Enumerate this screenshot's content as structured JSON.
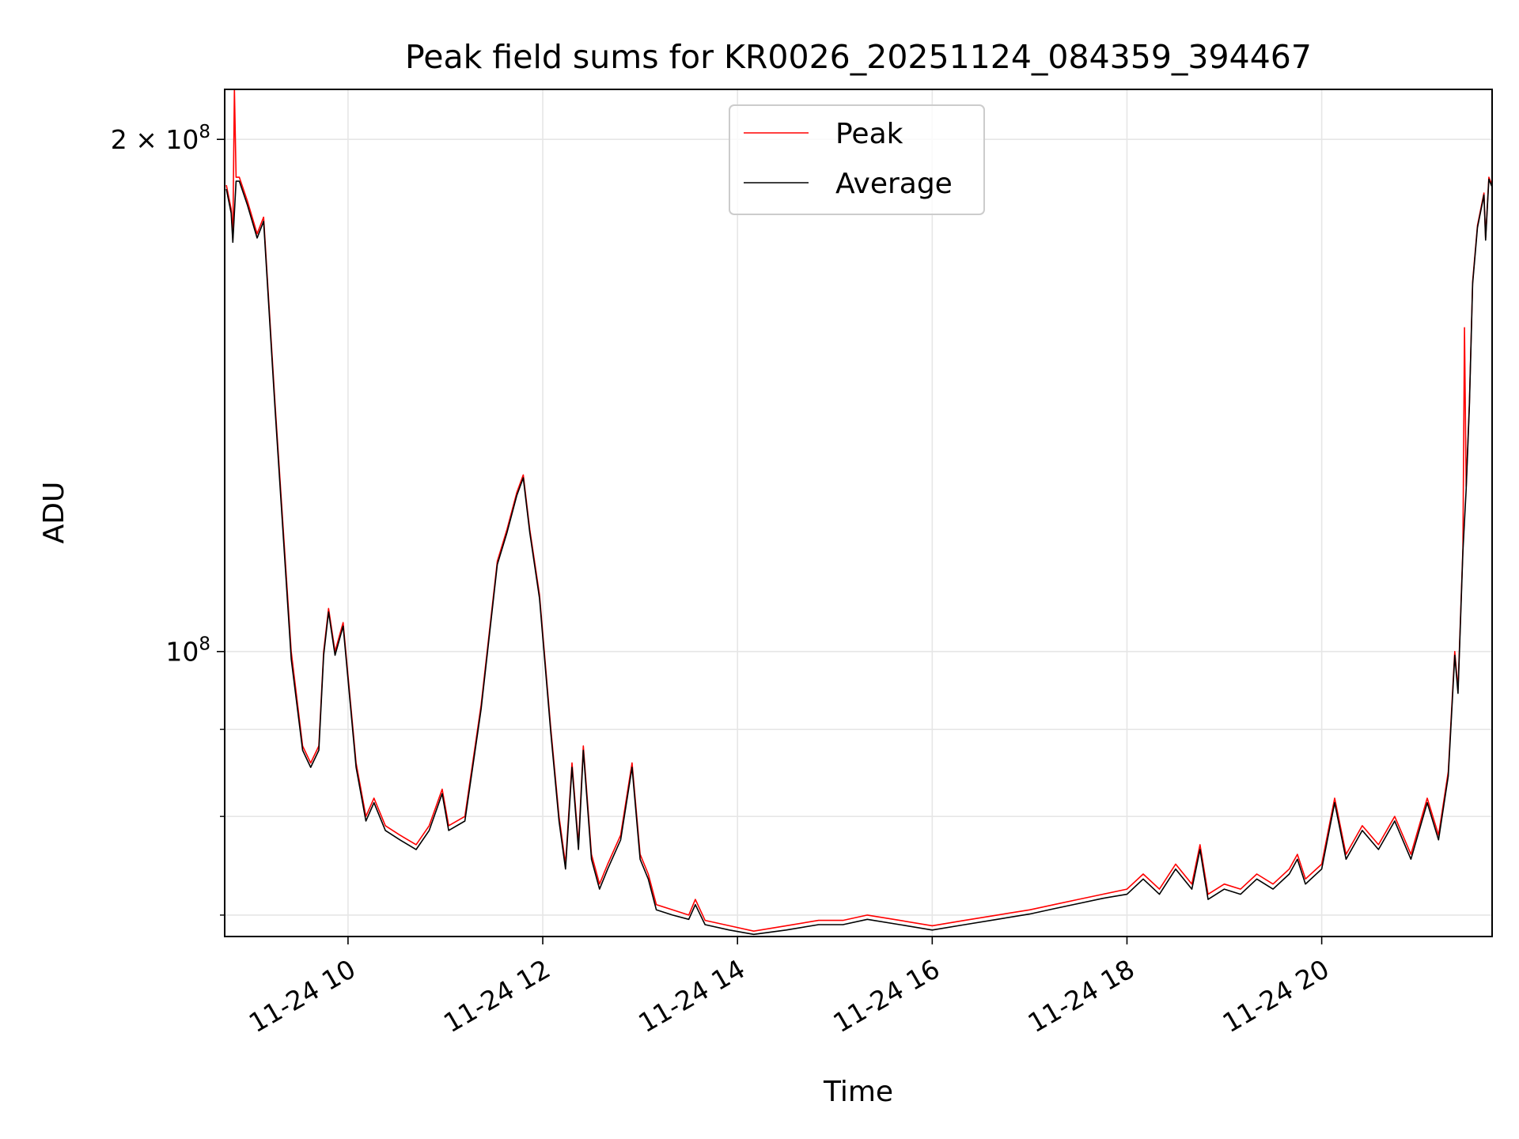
{
  "chart_data": {
    "type": "line",
    "title": "Peak field sums for KR0026_20251124_084359_394467",
    "xlabel": "Time",
    "ylabel": "ADU",
    "yscale": "log",
    "xlim": [
      "2025-11-24 08:44",
      "2025-11-24 21:45"
    ],
    "ylim": [
      68000000,
      214000000
    ],
    "x_ticks": [
      {
        "value": "2025-11-24 10:00",
        "label": "11-24 10"
      },
      {
        "value": "2025-11-24 12:00",
        "label": "11-24 12"
      },
      {
        "value": "2025-11-24 14:00",
        "label": "11-24 14"
      },
      {
        "value": "2025-11-24 16:00",
        "label": "11-24 16"
      },
      {
        "value": "2025-11-24 18:00",
        "label": "11-24 18"
      },
      {
        "value": "2025-11-24 20:00",
        "label": "11-24 20"
      }
    ],
    "y_major_ticks": [
      {
        "value": 100000000,
        "base": "10",
        "exp": "8",
        "mult": ""
      },
      {
        "value": 200000000,
        "base": "10",
        "exp": "8",
        "mult": "2 × "
      }
    ],
    "y_minor_ticks": [
      70000000,
      80000000,
      90000000
    ],
    "grid": true,
    "legend_position": "top-center",
    "series": [
      {
        "name": "Peak",
        "color": "#ff0000",
        "points": [
          [
            "2025-11-24 08:45",
            188000000
          ],
          [
            "2025-11-24 08:48",
            182000000
          ],
          [
            "2025-11-24 08:49",
            175000000
          ],
          [
            "2025-11-24 08:50",
            214000000
          ],
          [
            "2025-11-24 08:51",
            190000000
          ],
          [
            "2025-11-24 08:53",
            190000000
          ],
          [
            "2025-11-24 08:58",
            184000000
          ],
          [
            "2025-11-24 09:04",
            176000000
          ],
          [
            "2025-11-24 09:08",
            180000000
          ],
          [
            "2025-11-24 09:15",
            140000000
          ],
          [
            "2025-11-24 09:25",
            100000000
          ],
          [
            "2025-11-24 09:32",
            88000000
          ],
          [
            "2025-11-24 09:37",
            86000000
          ],
          [
            "2025-11-24 09:42",
            88000000
          ],
          [
            "2025-11-24 09:45",
            100000000
          ],
          [
            "2025-11-24 09:48",
            106000000
          ],
          [
            "2025-11-24 09:52",
            100000000
          ],
          [
            "2025-11-24 09:57",
            104000000
          ],
          [
            "2025-11-24 10:05",
            86000000
          ],
          [
            "2025-11-24 10:11",
            80000000
          ],
          [
            "2025-11-24 10:16",
            82000000
          ],
          [
            "2025-11-24 10:23",
            79000000
          ],
          [
            "2025-11-24 10:32",
            78000000
          ],
          [
            "2025-11-24 10:42",
            77000000
          ],
          [
            "2025-11-24 10:50",
            79000000
          ],
          [
            "2025-11-24 10:58",
            83000000
          ],
          [
            "2025-11-24 11:02",
            79000000
          ],
          [
            "2025-11-24 11:12",
            80000000
          ],
          [
            "2025-11-24 11:22",
            93000000
          ],
          [
            "2025-11-24 11:32",
            113000000
          ],
          [
            "2025-11-24 11:38",
            118000000
          ],
          [
            "2025-11-24 11:44",
            124000000
          ],
          [
            "2025-11-24 11:48",
            127000000
          ],
          [
            "2025-11-24 11:52",
            118000000
          ],
          [
            "2025-11-24 11:58",
            108000000
          ],
          [
            "2025-11-24 12:05",
            90000000
          ],
          [
            "2025-11-24 12:10",
            80000000
          ],
          [
            "2025-11-24 12:14",
            75000000
          ],
          [
            "2025-11-24 12:18",
            86000000
          ],
          [
            "2025-11-24 12:22",
            77000000
          ],
          [
            "2025-11-24 12:25",
            88000000
          ],
          [
            "2025-11-24 12:30",
            76000000
          ],
          [
            "2025-11-24 12:35",
            73000000
          ],
          [
            "2025-11-24 12:40",
            75000000
          ],
          [
            "2025-11-24 12:48",
            78000000
          ],
          [
            "2025-11-24 12:55",
            86000000
          ],
          [
            "2025-11-24 13:00",
            76000000
          ],
          [
            "2025-11-24 13:05",
            74000000
          ],
          [
            "2025-11-24 13:10",
            71000000
          ],
          [
            "2025-11-24 13:20",
            70500000
          ],
          [
            "2025-11-24 13:30",
            70000000
          ],
          [
            "2025-11-24 13:34",
            71500000
          ],
          [
            "2025-11-24 13:40",
            69500000
          ],
          [
            "2025-11-24 13:55",
            69000000
          ],
          [
            "2025-11-24 14:10",
            68500000
          ],
          [
            "2025-11-24 14:30",
            69000000
          ],
          [
            "2025-11-24 14:50",
            69500000
          ],
          [
            "2025-11-24 15:05",
            69500000
          ],
          [
            "2025-11-24 15:20",
            70000000
          ],
          [
            "2025-11-24 15:40",
            69500000
          ],
          [
            "2025-11-24 16:00",
            69000000
          ],
          [
            "2025-11-24 16:20",
            69500000
          ],
          [
            "2025-11-24 16:40",
            70000000
          ],
          [
            "2025-11-24 17:00",
            70500000
          ],
          [
            "2025-11-24 17:15",
            71000000
          ],
          [
            "2025-11-24 17:30",
            71500000
          ],
          [
            "2025-11-24 17:45",
            72000000
          ],
          [
            "2025-11-24 18:00",
            72500000
          ],
          [
            "2025-11-24 18:10",
            74000000
          ],
          [
            "2025-11-24 18:20",
            72500000
          ],
          [
            "2025-11-24 18:30",
            75000000
          ],
          [
            "2025-11-24 18:40",
            73000000
          ],
          [
            "2025-11-24 18:45",
            77000000
          ],
          [
            "2025-11-24 18:50",
            72000000
          ],
          [
            "2025-11-24 19:00",
            73000000
          ],
          [
            "2025-11-24 19:10",
            72500000
          ],
          [
            "2025-11-24 19:20",
            74000000
          ],
          [
            "2025-11-24 19:30",
            73000000
          ],
          [
            "2025-11-24 19:40",
            74500000
          ],
          [
            "2025-11-24 19:45",
            76000000
          ],
          [
            "2025-11-24 19:50",
            73500000
          ],
          [
            "2025-11-24 20:00",
            75000000
          ],
          [
            "2025-11-24 20:08",
            82000000
          ],
          [
            "2025-11-24 20:15",
            76000000
          ],
          [
            "2025-11-24 20:25",
            79000000
          ],
          [
            "2025-11-24 20:35",
            77000000
          ],
          [
            "2025-11-24 20:45",
            80000000
          ],
          [
            "2025-11-24 20:55",
            76000000
          ],
          [
            "2025-11-24 21:05",
            82000000
          ],
          [
            "2025-11-24 21:12",
            78000000
          ],
          [
            "2025-11-24 21:18",
            85000000
          ],
          [
            "2025-11-24 21:22",
            100000000
          ],
          [
            "2025-11-24 21:24",
            95000000
          ],
          [
            "2025-11-24 21:27",
            115000000
          ],
          [
            "2025-11-24 21:28",
            155000000
          ],
          [
            "2025-11-24 21:29",
            125000000
          ],
          [
            "2025-11-24 21:31",
            140000000
          ],
          [
            "2025-11-24 21:33",
            165000000
          ],
          [
            "2025-11-24 21:36",
            178000000
          ],
          [
            "2025-11-24 21:40",
            186000000
          ],
          [
            "2025-11-24 21:41",
            175000000
          ],
          [
            "2025-11-24 21:43",
            190000000
          ],
          [
            "2025-11-24 21:45",
            188000000
          ]
        ]
      },
      {
        "name": "Average",
        "color": "#000000",
        "points": [
          [
            "2025-11-24 08:45",
            187000000
          ],
          [
            "2025-11-24 08:48",
            181000000
          ],
          [
            "2025-11-24 08:49",
            174000000
          ],
          [
            "2025-11-24 08:51",
            189000000
          ],
          [
            "2025-11-24 08:53",
            189000000
          ],
          [
            "2025-11-24 08:58",
            183000000
          ],
          [
            "2025-11-24 09:04",
            175000000
          ],
          [
            "2025-11-24 09:08",
            179000000
          ],
          [
            "2025-11-24 09:15",
            139000000
          ],
          [
            "2025-11-24 09:25",
            99000000
          ],
          [
            "2025-11-24 09:32",
            87500000
          ],
          [
            "2025-11-24 09:37",
            85500000
          ],
          [
            "2025-11-24 09:42",
            87500000
          ],
          [
            "2025-11-24 09:45",
            99500000
          ],
          [
            "2025-11-24 09:48",
            105500000
          ],
          [
            "2025-11-24 09:52",
            99500000
          ],
          [
            "2025-11-24 09:57",
            103500000
          ],
          [
            "2025-11-24 10:05",
            85500000
          ],
          [
            "2025-11-24 10:11",
            79500000
          ],
          [
            "2025-11-24 10:16",
            81500000
          ],
          [
            "2025-11-24 10:23",
            78500000
          ],
          [
            "2025-11-24 10:32",
            77500000
          ],
          [
            "2025-11-24 10:42",
            76500000
          ],
          [
            "2025-11-24 10:50",
            78500000
          ],
          [
            "2025-11-24 10:58",
            82500000
          ],
          [
            "2025-11-24 11:02",
            78500000
          ],
          [
            "2025-11-24 11:12",
            79500000
          ],
          [
            "2025-11-24 11:22",
            92500000
          ],
          [
            "2025-11-24 11:32",
            112500000
          ],
          [
            "2025-11-24 11:38",
            117500000
          ],
          [
            "2025-11-24 11:44",
            123500000
          ],
          [
            "2025-11-24 11:48",
            126500000
          ],
          [
            "2025-11-24 11:52",
            117500000
          ],
          [
            "2025-11-24 11:58",
            107500000
          ],
          [
            "2025-11-24 12:05",
            89500000
          ],
          [
            "2025-11-24 12:10",
            79500000
          ],
          [
            "2025-11-24 12:14",
            74500000
          ],
          [
            "2025-11-24 12:18",
            85500000
          ],
          [
            "2025-11-24 12:22",
            76500000
          ],
          [
            "2025-11-24 12:25",
            87500000
          ],
          [
            "2025-11-24 12:30",
            75500000
          ],
          [
            "2025-11-24 12:35",
            72500000
          ],
          [
            "2025-11-24 12:40",
            74500000
          ],
          [
            "2025-11-24 12:48",
            77500000
          ],
          [
            "2025-11-24 12:55",
            85500000
          ],
          [
            "2025-11-24 13:00",
            75500000
          ],
          [
            "2025-11-24 13:05",
            73500000
          ],
          [
            "2025-11-24 13:10",
            70500000
          ],
          [
            "2025-11-24 13:20",
            70000000
          ],
          [
            "2025-11-24 13:30",
            69600000
          ],
          [
            "2025-11-24 13:34",
            71000000
          ],
          [
            "2025-11-24 13:40",
            69100000
          ],
          [
            "2025-11-24 13:55",
            68600000
          ],
          [
            "2025-11-24 14:10",
            68200000
          ],
          [
            "2025-11-24 14:30",
            68600000
          ],
          [
            "2025-11-24 14:50",
            69100000
          ],
          [
            "2025-11-24 15:05",
            69100000
          ],
          [
            "2025-11-24 15:20",
            69600000
          ],
          [
            "2025-11-24 15:40",
            69100000
          ],
          [
            "2025-11-24 16:00",
            68600000
          ],
          [
            "2025-11-24 16:20",
            69100000
          ],
          [
            "2025-11-24 16:40",
            69600000
          ],
          [
            "2025-11-24 17:00",
            70100000
          ],
          [
            "2025-11-24 17:15",
            70600000
          ],
          [
            "2025-11-24 17:30",
            71100000
          ],
          [
            "2025-11-24 17:45",
            71600000
          ],
          [
            "2025-11-24 18:00",
            72000000
          ],
          [
            "2025-11-24 18:10",
            73500000
          ],
          [
            "2025-11-24 18:20",
            72000000
          ],
          [
            "2025-11-24 18:30",
            74500000
          ],
          [
            "2025-11-24 18:40",
            72500000
          ],
          [
            "2025-11-24 18:45",
            76500000
          ],
          [
            "2025-11-24 18:50",
            71500000
          ],
          [
            "2025-11-24 19:00",
            72500000
          ],
          [
            "2025-11-24 19:10",
            72000000
          ],
          [
            "2025-11-24 19:20",
            73500000
          ],
          [
            "2025-11-24 19:30",
            72500000
          ],
          [
            "2025-11-24 19:40",
            74000000
          ],
          [
            "2025-11-24 19:45",
            75500000
          ],
          [
            "2025-11-24 19:50",
            73000000
          ],
          [
            "2025-11-24 20:00",
            74500000
          ],
          [
            "2025-11-24 20:08",
            81500000
          ],
          [
            "2025-11-24 20:15",
            75500000
          ],
          [
            "2025-11-24 20:25",
            78500000
          ],
          [
            "2025-11-24 20:35",
            76500000
          ],
          [
            "2025-11-24 20:45",
            79500000
          ],
          [
            "2025-11-24 20:55",
            75500000
          ],
          [
            "2025-11-24 21:05",
            81500000
          ],
          [
            "2025-11-24 21:12",
            77500000
          ],
          [
            "2025-11-24 21:18",
            84500000
          ],
          [
            "2025-11-24 21:22",
            99500000
          ],
          [
            "2025-11-24 21:24",
            94500000
          ],
          [
            "2025-11-24 21:27",
            114500000
          ],
          [
            "2025-11-24 21:29",
            124500000
          ],
          [
            "2025-11-24 21:31",
            139500000
          ],
          [
            "2025-11-24 21:33",
            164500000
          ],
          [
            "2025-11-24 21:36",
            177500000
          ],
          [
            "2025-11-24 21:40",
            185500000
          ],
          [
            "2025-11-24 21:41",
            174500000
          ],
          [
            "2025-11-24 21:43",
            189500000
          ],
          [
            "2025-11-24 21:45",
            187500000
          ]
        ]
      }
    ]
  }
}
